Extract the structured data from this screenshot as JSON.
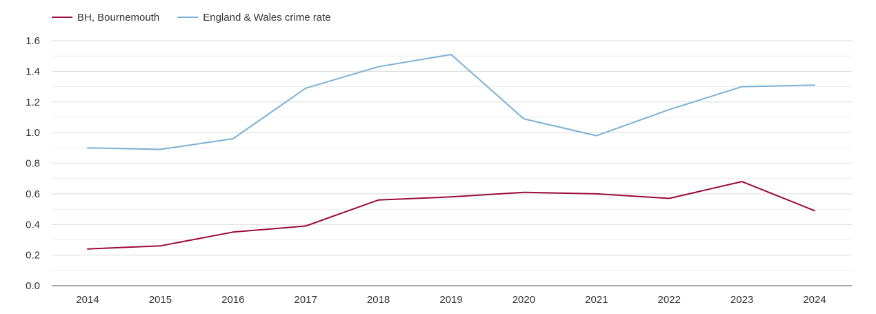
{
  "chart_data": {
    "type": "line",
    "title": "",
    "xlabel": "",
    "ylabel": "",
    "categories": [
      "2014",
      "2015",
      "2016",
      "2017",
      "2018",
      "2019",
      "2020",
      "2021",
      "2022",
      "2023",
      "2024"
    ],
    "ylim": [
      0,
      1.6
    ],
    "yticks": [
      "0.0",
      "0.2",
      "0.4",
      "0.6",
      "0.8",
      "1.0",
      "1.2",
      "1.4",
      "1.6"
    ],
    "grid": true,
    "legend_position": "top-left",
    "series": [
      {
        "name": "BH, Bournemouth",
        "color": "#9b0a3a",
        "values": [
          0.24,
          0.26,
          0.35,
          0.39,
          0.56,
          0.58,
          0.61,
          0.6,
          0.57,
          0.68,
          0.49
        ]
      },
      {
        "name": "England & Wales crime rate",
        "color": "#7ab1d4",
        "values": [
          0.9,
          0.89,
          0.96,
          1.29,
          1.43,
          1.51,
          1.09,
          0.98,
          1.15,
          1.3,
          1.31
        ]
      }
    ]
  }
}
